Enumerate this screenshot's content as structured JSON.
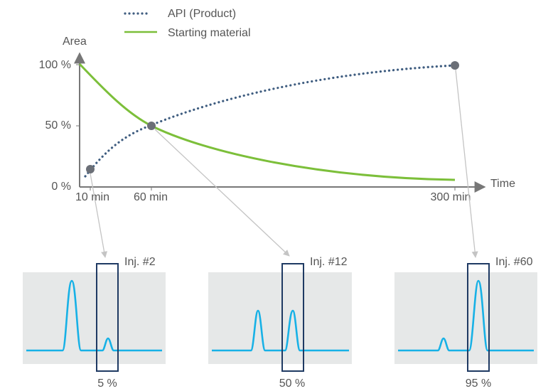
{
  "chart_data": {
    "type": "line",
    "xlabel": "Time",
    "ylabel": "Area",
    "x_ticks": [
      "10 min",
      "60 min",
      "300 min"
    ],
    "y_ticks": [
      "0 %",
      "50 %",
      "100 %"
    ],
    "xlim": [
      0,
      300
    ],
    "ylim": [
      0,
      100
    ],
    "series": [
      {
        "name": "API (Product)",
        "style": "dotted",
        "color": "#3f5d80",
        "x": [
          10,
          60,
          300
        ],
        "y": [
          5,
          50,
          95
        ]
      },
      {
        "name": "Starting material",
        "style": "solid",
        "color": "#7cbf3a",
        "x": [
          0,
          60,
          300
        ],
        "y": [
          100,
          50,
          5
        ]
      }
    ],
    "highlight_points": [
      {
        "x": 10,
        "y": 5
      },
      {
        "x": 60,
        "y": 50
      },
      {
        "x": 300,
        "y": 95
      }
    ],
    "injections": [
      {
        "label": "Inj. #2",
        "percent_label": "5 %",
        "peaks": [
          1.0,
          0.12
        ]
      },
      {
        "label": "Inj. #12",
        "percent_label": "50 %",
        "peaks": [
          0.6,
          0.6
        ]
      },
      {
        "label": "Inj. #60",
        "percent_label": "95 %",
        "peaks": [
          0.12,
          1.0
        ]
      }
    ],
    "colors": {
      "axis": "#777777",
      "chromatogram_bg": "#e6e8e8",
      "trace": "#17b1e6",
      "frame": "#1f3a63",
      "marker": "#6b6f77",
      "connector": "#c4c4c4"
    }
  }
}
